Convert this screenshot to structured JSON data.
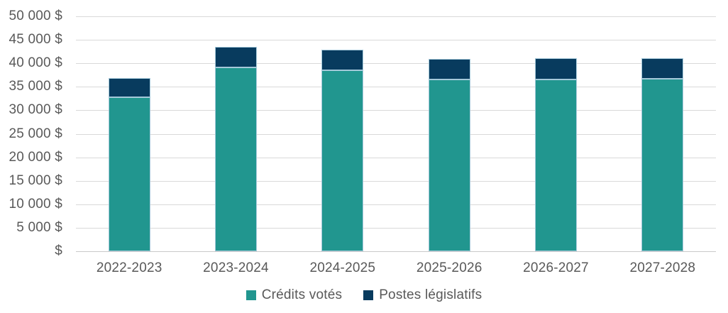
{
  "chart_data": {
    "type": "bar",
    "stacked": true,
    "title": "",
    "xlabel": "",
    "ylabel": "",
    "categories": [
      "2022-2023",
      "2023-2024",
      "2024-2025",
      "2025-2026",
      "2026-2027",
      "2027-2028"
    ],
    "series": [
      {
        "name": "Crédits votés",
        "color": "#21968F",
        "values": [
          32800,
          39150,
          38500,
          36550,
          36600,
          36650
        ]
      },
      {
        "name": "Postes législatifs",
        "color": "#083B5E",
        "values": [
          4100,
          4400,
          4400,
          4350,
          4500,
          4450
        ]
      }
    ],
    "ylim": [
      0,
      50000
    ],
    "ytick_step": 5000,
    "yticks": [
      {
        "value": 0,
        "label": "$"
      },
      {
        "value": 5000,
        "label": "5 000 $"
      },
      {
        "value": 10000,
        "label": "10 000 $"
      },
      {
        "value": 15000,
        "label": "15 000 $"
      },
      {
        "value": 20000,
        "label": "20 000 $"
      },
      {
        "value": 25000,
        "label": "25 000 $"
      },
      {
        "value": 30000,
        "label": "30 000 $"
      },
      {
        "value": 35000,
        "label": "35 000 $"
      },
      {
        "value": 40000,
        "label": "40 000 $"
      },
      {
        "value": 45000,
        "label": "45 000 $"
      },
      {
        "value": 50000,
        "label": "50 000 $"
      }
    ],
    "grid": true,
    "legend_position": "bottom",
    "colors": {
      "gridline": "#D9D9D9",
      "axis_line": "#C9C9C9",
      "text": "#595959",
      "bar_border": "#A5C9DA"
    }
  }
}
